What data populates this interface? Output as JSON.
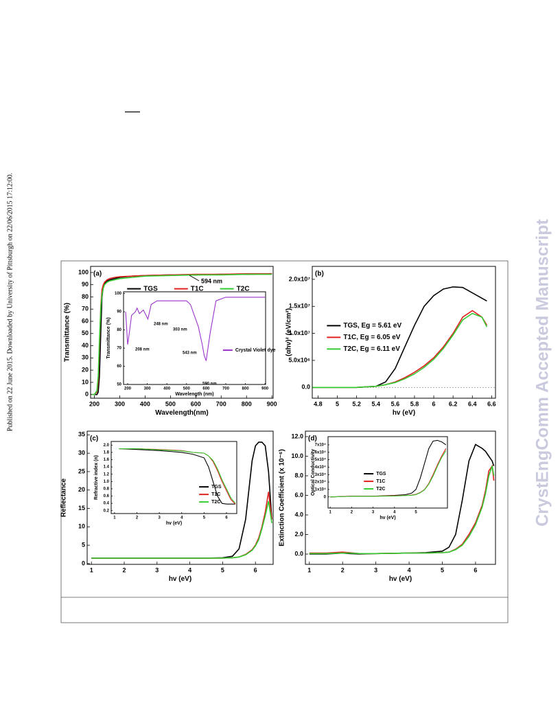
{
  "page": {
    "side_note": "Published on 22 June 2015. Downloaded by University of Pittsburgh on 22/06/2015 17:12:00.",
    "watermark": "CrystEngComm Accepted Manuscript"
  },
  "chart_data": [
    {
      "type": "line",
      "panel_label": "(a)",
      "x_label": "Wavelength(nm)",
      "y_label": "Transmittance (%)",
      "annotations": [
        "594 nm"
      ],
      "x": [
        190,
        200,
        210,
        215,
        220,
        225,
        230,
        235,
        240,
        250,
        260,
        280,
        300,
        350,
        400,
        500,
        600,
        700,
        800,
        900
      ],
      "series": [
        {
          "name": "TGS",
          "color": "#000000",
          "values": [
            0,
            0,
            0,
            2,
            15,
            50,
            80,
            88,
            91,
            93,
            94,
            95,
            96,
            97,
            97.5,
            98,
            98,
            98.5,
            98.5,
            99
          ]
        },
        {
          "name": "T1C",
          "color": "#e01f1f",
          "values": [
            0,
            0,
            2,
            10,
            40,
            72,
            86,
            90,
            92,
            94,
            95,
            96,
            96.5,
            97,
            97.5,
            98,
            98.5,
            98.5,
            99,
            99
          ]
        },
        {
          "name": "T2C",
          "color": "#33cc33",
          "values": [
            0,
            0,
            3,
            15,
            45,
            70,
            82,
            87,
            90,
            92,
            93,
            94,
            95,
            96,
            97,
            97.5,
            98,
            98,
            98.5,
            98.5
          ]
        }
      ],
      "xlim": [
        185,
        905
      ],
      "ylim": [
        -3,
        105
      ],
      "xticks": [
        200,
        300,
        400,
        500,
        600,
        700,
        800,
        900
      ],
      "yticks": [
        0,
        10,
        20,
        30,
        40,
        50,
        60,
        70,
        80,
        90,
        100
      ],
      "legend": "upper center",
      "legend_orientation": "horizontal"
    },
    {
      "type": "line",
      "x_label": "Wavelength (nm)",
      "y_label": "Transmittance (%)",
      "annotations": [
        "208 nm",
        "248 nm",
        "303 nm",
        "543 nm",
        "590 nm"
      ],
      "x": [
        190,
        200,
        208,
        220,
        240,
        248,
        260,
        280,
        303,
        320,
        350,
        400,
        450,
        500,
        520,
        543,
        560,
        580,
        590,
        600,
        620,
        650,
        700,
        800,
        900
      ],
      "series": [
        {
          "name": "Crystal Violet dye",
          "color": "#9933cc",
          "values": [
            90,
            72,
            78,
            88,
            90,
            92,
            89,
            91,
            86,
            94,
            96,
            96,
            96,
            96,
            94,
            87,
            82,
            72,
            66,
            63,
            78,
            96,
            98,
            98,
            98
          ]
        }
      ],
      "xlim": [
        179,
        903
      ],
      "ylim": [
        50,
        101
      ],
      "xticks": [
        200,
        300,
        400,
        500,
        600,
        700,
        800,
        900
      ],
      "yticks": [
        50,
        60,
        70,
        80,
        90,
        100
      ],
      "legend": "lower right",
      "legend_orientation": "vertical"
    },
    {
      "type": "line",
      "panel_label": "(b)",
      "x_label": "hv (eV)",
      "y_label": "(αhν)² (eV/cm²)",
      "zero_line": true,
      "x": [
        4.74,
        5.0,
        5.2,
        5.4,
        5.5,
        5.6,
        5.7,
        5.8,
        5.9,
        6.0,
        6.1,
        6.2,
        6.3,
        6.4,
        6.5,
        6.55
      ],
      "series": [
        {
          "name": "TGS, Eg = 5.61 eV",
          "color": "#000000",
          "values": [
            0,
            0,
            0,
            200000,
            1000000,
            3500000,
            7500000,
            11500000,
            15000000,
            17000000,
            18200000,
            18600000,
            18500000,
            17500000,
            16500000,
            16000000
          ]
        },
        {
          "name": "T1C, Eg = 6.05 eV",
          "color": "#e01f1f",
          "values": [
            0,
            0,
            0,
            200000,
            500000,
            1000000,
            1800000,
            2800000,
            4000000,
            5500000,
            7500000,
            10000000,
            13000000,
            14200000,
            13000000,
            11500000
          ]
        },
        {
          "name": "T2C, Eg = 6.11 eV",
          "color": "#33cc33",
          "values": [
            0,
            0,
            0,
            200000,
            500000,
            900000,
            1600000,
            2500000,
            3700000,
            5200000,
            7200000,
            9700000,
            12500000,
            13700000,
            13000000,
            11200000
          ]
        }
      ],
      "xlim": [
        4.74,
        6.64
      ],
      "ylim": [
        -2000000,
        22400000
      ],
      "xticks": [
        4.8,
        5.0,
        5.2,
        5.4,
        5.6,
        5.8,
        6.0,
        6.2,
        6.4,
        6.6
      ],
      "yticks": [
        {
          "value": 0,
          "label": "0.0"
        },
        {
          "value": 5000000,
          "label": "5.0x10⁶"
        },
        {
          "value": 10000000,
          "label": "1.0x10⁷"
        },
        {
          "value": 15000000,
          "label": "1.5x10⁷"
        },
        {
          "value": 20000000,
          "label": "2.0x10⁷"
        }
      ],
      "legend": "center left",
      "legend_orientation": "vertical"
    },
    {
      "type": "line",
      "panel_label": "(c)",
      "x_label": "hv (eV)",
      "y_label": "Reflectance",
      "x": [
        1,
        1.5,
        2,
        2.5,
        3,
        3.5,
        4,
        4.5,
        5,
        5.3,
        5.5,
        5.7,
        5.9,
        6.0,
        6.1,
        6.2,
        6.3,
        6.4,
        6.5
      ],
      "series": [
        {
          "name": "TGS",
          "color": "#000000",
          "values": [
            1.5,
            1.5,
            1.5,
            1.5,
            1.5,
            1.5,
            1.5,
            1.5,
            1.6,
            2,
            4,
            12,
            28,
            32,
            33,
            33,
            32,
            25,
            12
          ]
        },
        {
          "name": "T1C",
          "color": "#e01f1f",
          "values": [
            1.5,
            1.5,
            1.5,
            1.5,
            1.5,
            1.5,
            1.5,
            1.5,
            1.5,
            1.6,
            1.8,
            2.5,
            3.8,
            5,
            7,
            10,
            14,
            19.5,
            12
          ]
        },
        {
          "name": "T2C",
          "color": "#33cc33",
          "values": [
            1.5,
            1.5,
            1.5,
            1.5,
            1.5,
            1.5,
            1.5,
            1.5,
            1.5,
            1.6,
            1.8,
            2.4,
            3.6,
            4.8,
            6.5,
            9.5,
            13,
            17,
            11
          ]
        }
      ],
      "xlim": [
        0.87,
        6.54
      ],
      "ylim": [
        -0.2,
        36
      ],
      "xticks": [
        1,
        2,
        3,
        4,
        5,
        6
      ],
      "yticks": [
        0,
        5,
        10,
        15,
        20,
        25,
        30,
        35
      ]
    },
    {
      "type": "line",
      "x_label": "hv (eV)",
      "y_label": "Refractive index (n)",
      "x": [
        1.2,
        2,
        3,
        4,
        4.5,
        5,
        5.2,
        5.4,
        5.6,
        5.8,
        6.0,
        6.2,
        6.4
      ],
      "series": [
        {
          "name": "TGS",
          "color": "#000000",
          "values": [
            1.9,
            1.88,
            1.85,
            1.8,
            1.75,
            1.65,
            1.4,
            1.0,
            0.6,
            0.4,
            0.38,
            0.38,
            0.38
          ]
        },
        {
          "name": "T1C",
          "color": "#e01f1f",
          "values": [
            1.9,
            1.9,
            1.88,
            1.85,
            1.8,
            1.78,
            1.7,
            1.55,
            1.3,
            1.0,
            0.75,
            0.5,
            0.38
          ]
        },
        {
          "name": "T2C",
          "color": "#33cc33",
          "values": [
            1.9,
            1.9,
            1.87,
            1.84,
            1.8,
            1.78,
            1.7,
            1.58,
            1.35,
            1.05,
            0.8,
            0.55,
            0.4
          ]
        }
      ],
      "xlim": [
        0.85,
        6.46
      ],
      "ylim": [
        0.12,
        2.1
      ],
      "xticks": [
        1,
        2,
        3,
        4,
        5,
        6
      ],
      "yticks": [
        0.2,
        0.4,
        0.6,
        0.8,
        {
          "value": 1,
          "label": "1.0"
        },
        1.2,
        1.4,
        1.6,
        1.8,
        {
          "value": 2,
          "label": "2.0"
        }
      ],
      "legend": "lower right",
      "legend_orientation": "vertical"
    },
    {
      "type": "line",
      "panel_label": "(d)",
      "x_label": "hv (eV)",
      "y_label": "Extinction Coefficient (x 10⁻⁶)",
      "x": [
        1,
        1.5,
        2,
        2.2,
        2.5,
        3,
        4,
        4.5,
        5,
        5.2,
        5.4,
        5.6,
        5.8,
        6.0,
        6.2,
        6.3,
        6.4,
        6.5,
        6.55
      ],
      "series": [
        {
          "name": "TGS",
          "color": "#000000",
          "values": [
            0,
            0,
            0.1,
            0.05,
            0,
            0.05,
            0.1,
            0.15,
            0.3,
            0.7,
            2,
            5.5,
            9.5,
            11.2,
            10.8,
            10.5,
            10,
            9.5,
            9
          ]
        },
        {
          "name": "T1C",
          "color": "#e01f1f",
          "values": [
            0.1,
            0.1,
            0.2,
            0.15,
            0.05,
            0.05,
            0.1,
            0.1,
            0.15,
            0.2,
            0.5,
            1,
            2,
            3.2,
            5,
            6.5,
            8.5,
            9,
            7.5
          ]
        },
        {
          "name": "T2C",
          "color": "#33cc33",
          "values": [
            0.05,
            0.05,
            0.1,
            0.1,
            0.05,
            0.05,
            0.1,
            0.1,
            0.15,
            0.2,
            0.45,
            0.9,
            1.8,
            3,
            4.8,
            6.2,
            8,
            9,
            8
          ]
        }
      ],
      "xlim": [
        0.88,
        6.6
      ],
      "ylim": [
        -1.05,
        12.56
      ],
      "xticks": [
        1,
        2,
        3,
        4,
        5,
        6
      ],
      "yticks": [
        {
          "value": 0,
          "label": "0.0"
        },
        {
          "value": 2,
          "label": "2.0"
        },
        {
          "value": 4,
          "label": "4.0"
        },
        {
          "value": 6,
          "label": "6.0"
        },
        {
          "value": 8,
          "label": "8.0"
        },
        {
          "value": 10,
          "label": "10.0"
        },
        {
          "value": 12,
          "label": "12.0"
        }
      ]
    },
    {
      "type": "line",
      "x_label": "hv (eV)",
      "y_label": "Optical Conductivity",
      "x": [
        1,
        2,
        3,
        4,
        4.5,
        4.8,
        5,
        5.2,
        5.4,
        5.6,
        5.8,
        6.0,
        6.2,
        6.4
      ],
      "series": [
        {
          "name": "TGS",
          "color": "#000000",
          "values": [
            0,
            1000,
            1000,
            2000,
            3000,
            5000,
            10000,
            25000,
            45000,
            65000,
            75000,
            76000,
            74000,
            70000
          ]
        },
        {
          "name": "T1C",
          "color": "#e01f1f",
          "values": [
            0,
            1000,
            1000,
            1500,
            2000,
            2500,
            3500,
            6000,
            10000,
            18000,
            30000,
            43000,
            55000,
            65000
          ]
        },
        {
          "name": "T2C",
          "color": "#33cc33",
          "values": [
            0,
            800,
            800,
            1200,
            1800,
            2200,
            3000,
            5500,
            9500,
            17000,
            28000,
            41000,
            53000,
            62000
          ]
        }
      ],
      "xlim": [
        0.9,
        6.47
      ],
      "ylim": [
        -15000,
        81000
      ],
      "xticks": [
        1,
        2,
        3,
        4,
        5
      ],
      "yticks": [
        0,
        {
          "value": 10000,
          "label": "1x10⁴"
        },
        {
          "value": 20000,
          "label": "2x10⁴"
        },
        {
          "value": 30000,
          "label": "3x10⁴"
        },
        {
          "value": 40000,
          "label": "4x10⁴"
        },
        {
          "value": 50000,
          "label": "5x10⁴"
        },
        {
          "value": 60000,
          "label": "6x10⁴"
        },
        {
          "value": 70000,
          "label": "7x10⁴"
        }
      ],
      "legend": "center",
      "legend_orientation": "vertical"
    }
  ]
}
